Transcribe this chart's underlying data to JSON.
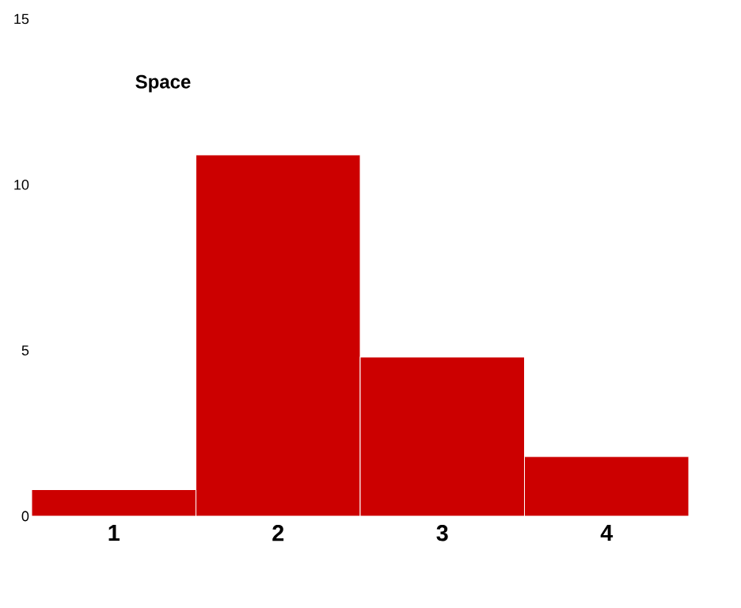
{
  "chart_data": {
    "type": "bar",
    "categories": [
      "1",
      "2",
      "3",
      "4"
    ],
    "values": [
      0.8,
      10.9,
      4.8,
      1.8
    ],
    "color": "#cc0000",
    "ylim": [
      0,
      15
    ],
    "yticks": [
      0,
      5,
      10,
      15
    ],
    "grid": false,
    "annotations": [
      "Space"
    ]
  }
}
